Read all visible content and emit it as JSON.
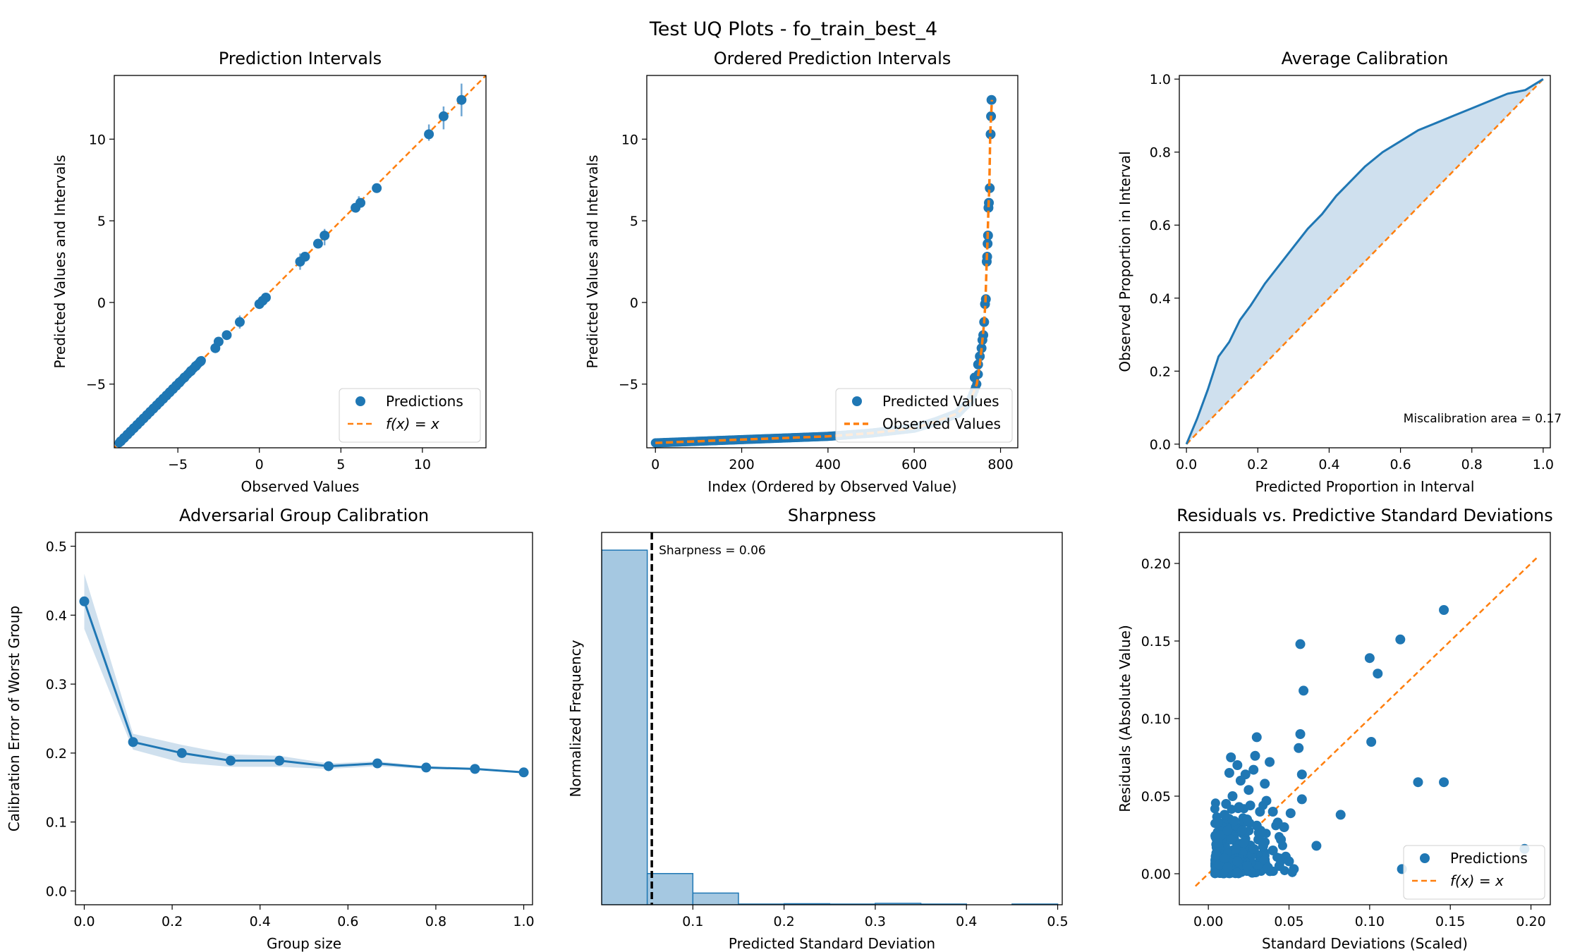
{
  "figure": {
    "title": "Test UQ Plots - fo_train_best_4",
    "colors": {
      "blue": "#1f77b4",
      "orange": "#ff7f0e",
      "fill": "#cfe0ee",
      "hist": "#a5c8e1"
    }
  },
  "chart_data": [
    {
      "id": "pi",
      "type": "scatter",
      "title": "Prediction Intervals",
      "xlabel": "Observed Values",
      "ylabel": "Predicted Values and Intervals",
      "xlim": [
        -8.9,
        13.9
      ],
      "ylim": [
        -8.9,
        13.9
      ],
      "xticks": [
        -5,
        0,
        5,
        10
      ],
      "yticks": [
        -5,
        0,
        5,
        10
      ],
      "tick_labels_x": [
        "−5",
        "0",
        "5",
        "10"
      ],
      "tick_labels_y": [
        "−5",
        "0",
        "5",
        "10"
      ],
      "legend": {
        "position": "lower-right",
        "entries": [
          "Predictions",
          "f(x) = x"
        ]
      },
      "points": [
        [
          -8.5,
          -8.5
        ],
        [
          -8.3,
          -8.3
        ],
        [
          -8.1,
          -8.1
        ],
        [
          -7.9,
          -7.9
        ],
        [
          -7.7,
          -7.7
        ],
        [
          -7.5,
          -7.5
        ],
        [
          -7.3,
          -7.3
        ],
        [
          -7.1,
          -7.1
        ],
        [
          -6.9,
          -6.9
        ],
        [
          -6.7,
          -6.7
        ],
        [
          -6.5,
          -6.5
        ],
        [
          -6.3,
          -6.3
        ],
        [
          -6.1,
          -6.1
        ],
        [
          -5.9,
          -5.9
        ],
        [
          -5.7,
          -5.7
        ],
        [
          -5.5,
          -5.5
        ],
        [
          -5.3,
          -5.3
        ],
        [
          -5.1,
          -5.1
        ],
        [
          -4.9,
          -4.9
        ],
        [
          -4.6,
          -4.6
        ],
        [
          -4.2,
          -4.2
        ],
        [
          -3.9,
          -3.9
        ],
        [
          -3.6,
          -3.6
        ],
        [
          -2.7,
          -2.8
        ],
        [
          -2.5,
          -2.4
        ],
        [
          -2.0,
          -2.0
        ],
        [
          -1.2,
          -1.2
        ],
        [
          0.0,
          -0.1
        ],
        [
          0.2,
          0.1
        ],
        [
          0.4,
          0.3
        ],
        [
          2.5,
          2.5
        ],
        [
          2.8,
          2.8
        ],
        [
          3.6,
          3.6
        ],
        [
          4.0,
          4.1
        ],
        [
          5.9,
          5.8
        ],
        [
          6.2,
          6.1
        ],
        [
          7.2,
          7.0
        ],
        [
          10.4,
          10.3
        ],
        [
          11.3,
          11.4
        ],
        [
          12.4,
          12.4
        ]
      ],
      "errors": [
        [
          4.0,
          0.5
        ],
        [
          10.4,
          0.5
        ],
        [
          11.3,
          0.7
        ],
        [
          12.4,
          1.0
        ],
        [
          -1.2,
          0.4
        ],
        [
          2.5,
          0.5
        ],
        [
          6.1,
          0.4
        ]
      ]
    },
    {
      "id": "opi",
      "type": "scatter",
      "title": "Ordered Prediction Intervals",
      "xlabel": "Index (Ordered by Observed Value)",
      "ylabel": "Predicted Values and Intervals",
      "xlim": [
        -20,
        840
      ],
      "ylim": [
        -8.9,
        13.9
      ],
      "xticks": [
        0,
        200,
        400,
        600,
        800
      ],
      "yticks": [
        -5,
        0,
        5,
        10
      ],
      "tick_labels_x": [
        "0",
        "200",
        "400",
        "600",
        "800"
      ],
      "tick_labels_y": [
        "−5",
        "0",
        "5",
        "10"
      ],
      "legend": {
        "position": "lower-right",
        "entries": [
          "Predicted Values",
          "Observed Values"
        ]
      },
      "curve_x": [
        0,
        100,
        200,
        300,
        400,
        500,
        600,
        650,
        700,
        730,
        745,
        752,
        757,
        762,
        765,
        768,
        770,
        772,
        774,
        776,
        778,
        780
      ],
      "curve_y": [
        -8.6,
        -8.5,
        -8.4,
        -8.3,
        -8.2,
        -8.0,
        -7.7,
        -7.3,
        -6.8,
        -6.0,
        -5.0,
        -3.8,
        -2.6,
        -1.2,
        0.0,
        2.6,
        4.0,
        5.8,
        7.0,
        10.3,
        11.4,
        12.4
      ],
      "sparse_points": [
        [
          740,
          -4.6
        ],
        [
          748,
          -3.8
        ],
        [
          752,
          -3.3
        ],
        [
          756,
          -2.8
        ],
        [
          758,
          -2.3
        ],
        [
          760,
          -2.0
        ],
        [
          762,
          -1.2
        ],
        [
          764,
          -0.1
        ],
        [
          766,
          0.2
        ],
        [
          768,
          2.5
        ],
        [
          769,
          2.8
        ],
        [
          770,
          3.6
        ],
        [
          771,
          4.1
        ],
        [
          772,
          5.8
        ],
        [
          773,
          6.1
        ],
        [
          775,
          7.0
        ],
        [
          777,
          10.3
        ],
        [
          778,
          11.4
        ],
        [
          779,
          12.4
        ]
      ]
    },
    {
      "id": "cal",
      "type": "line",
      "title": "Average Calibration",
      "xlabel": "Predicted Proportion in Interval",
      "ylabel": "Observed Proportion in Interval",
      "xlim": [
        -0.02,
        1.02
      ],
      "ylim": [
        -0.01,
        1.01
      ],
      "xticks": [
        0,
        0.2,
        0.4,
        0.6,
        0.8,
        1.0
      ],
      "yticks": [
        0,
        0.2,
        0.4,
        0.6,
        0.8,
        1.0
      ],
      "tick_labels_x": [
        "0.0",
        "0.2",
        "0.4",
        "0.6",
        "0.8",
        "1.0"
      ],
      "tick_labels_y": [
        "0.0",
        "0.2",
        "0.4",
        "0.6",
        "0.8",
        "1.0"
      ],
      "annotation": "Miscalibration area = 0.17",
      "x": [
        0,
        0.03,
        0.06,
        0.09,
        0.12,
        0.15,
        0.18,
        0.22,
        0.26,
        0.3,
        0.34,
        0.38,
        0.42,
        0.46,
        0.5,
        0.55,
        0.6,
        0.65,
        0.7,
        0.75,
        0.8,
        0.85,
        0.9,
        0.95,
        1.0
      ],
      "y": [
        0,
        0.07,
        0.15,
        0.24,
        0.28,
        0.34,
        0.38,
        0.44,
        0.49,
        0.54,
        0.59,
        0.63,
        0.68,
        0.72,
        0.76,
        0.8,
        0.83,
        0.86,
        0.88,
        0.9,
        0.92,
        0.94,
        0.96,
        0.97,
        1.0
      ]
    },
    {
      "id": "adv",
      "type": "line",
      "title": "Adversarial Group Calibration",
      "xlabel": "Group size",
      "ylabel": "Calibration Error of Worst Group",
      "xlim": [
        -0.02,
        1.02
      ],
      "ylim": [
        -0.02,
        0.52
      ],
      "xticks": [
        0,
        0.2,
        0.4,
        0.6,
        0.8,
        1.0
      ],
      "yticks": [
        0,
        0.1,
        0.2,
        0.3,
        0.4,
        0.5
      ],
      "tick_labels_x": [
        "0.0",
        "0.2",
        "0.4",
        "0.6",
        "0.8",
        "1.0"
      ],
      "tick_labels_y": [
        "0.0",
        "0.1",
        "0.2",
        "0.3",
        "0.4",
        "0.5"
      ],
      "x": [
        0.0,
        0.111,
        0.222,
        0.333,
        0.444,
        0.556,
        0.667,
        0.778,
        0.889,
        1.0
      ],
      "y": [
        0.42,
        0.216,
        0.2,
        0.189,
        0.189,
        0.181,
        0.185,
        0.179,
        0.177,
        0.172
      ],
      "upper": [
        0.46,
        0.228,
        0.212,
        0.198,
        0.196,
        0.185,
        0.188,
        0.181,
        0.178,
        0.173
      ],
      "lower": [
        0.38,
        0.205,
        0.186,
        0.18,
        0.18,
        0.177,
        0.181,
        0.177,
        0.176,
        0.171
      ]
    },
    {
      "id": "sharp",
      "type": "bar",
      "title": "Sharpness",
      "xlabel": "Predicted Standard Deviation",
      "ylabel": "Normalized Frequency",
      "xlim": [
        0,
        0.505
      ],
      "ylim": [
        0,
        1.05
      ],
      "xticks": [
        0.1,
        0.2,
        0.3,
        0.4,
        0.5
      ],
      "tick_labels_x": [
        "0.1",
        "0.2",
        "0.3",
        "0.4",
        "0.5"
      ],
      "bin_edges": [
        0,
        0.05,
        0.1,
        0.15,
        0.2,
        0.25,
        0.3,
        0.35,
        0.4,
        0.45,
        0.5
      ],
      "values": [
        1.0,
        0.088,
        0.033,
        0.002,
        0.003,
        0.002,
        0.004,
        0.002,
        0.0,
        0.002
      ],
      "sharpness_line": 0.055,
      "annotation": "Sharpness = 0.06"
    },
    {
      "id": "resid",
      "type": "scatter",
      "title": "Residuals vs. Predictive Standard Deviations",
      "xlabel": "Standard Deviations (Scaled)",
      "ylabel": "Residuals (Absolute Value)",
      "xlim": [
        -0.018,
        0.212
      ],
      "ylim": [
        -0.02,
        0.22
      ],
      "xticks": [
        0,
        0.05,
        0.1,
        0.15,
        0.2
      ],
      "yticks": [
        0,
        0.05,
        0.1,
        0.15,
        0.2
      ],
      "tick_labels_x": [
        "0.00",
        "0.05",
        "0.10",
        "0.15",
        "0.20"
      ],
      "tick_labels_y": [
        "0.00",
        "0.05",
        "0.10",
        "0.15",
        "0.20"
      ],
      "legend": {
        "position": "lower-right",
        "entries": [
          "Predictions",
          "f(x) = x"
        ]
      },
      "diag": [
        [
          -0.008,
          -0.008
        ],
        [
          0.205,
          0.205
        ]
      ],
      "points": [
        [
          0.146,
          0.17
        ],
        [
          0.057,
          0.148
        ],
        [
          0.1,
          0.139
        ],
        [
          0.119,
          0.151
        ],
        [
          0.105,
          0.129
        ],
        [
          0.059,
          0.118
        ],
        [
          0.101,
          0.085
        ],
        [
          0.057,
          0.09
        ],
        [
          0.056,
          0.081
        ],
        [
          0.03,
          0.088
        ],
        [
          0.13,
          0.059
        ],
        [
          0.146,
          0.059
        ],
        [
          0.082,
          0.038
        ],
        [
          0.067,
          0.018
        ],
        [
          0.12,
          0.003
        ],
        [
          0.196,
          0.016
        ],
        [
          0.058,
          0.064
        ],
        [
          0.058,
          0.048
        ],
        [
          0.053,
          0.003
        ],
        [
          0.051,
          0.039
        ],
        [
          0.047,
          0.03
        ],
        [
          0.045,
          0.022
        ],
        [
          0.038,
          0.072
        ],
        [
          0.035,
          0.058
        ],
        [
          0.036,
          0.047
        ],
        [
          0.032,
          0.04
        ],
        [
          0.029,
          0.076
        ],
        [
          0.028,
          0.067
        ],
        [
          0.025,
          0.054
        ],
        [
          0.023,
          0.064
        ],
        [
          0.02,
          0.06
        ],
        [
          0.018,
          0.07
        ],
        [
          0.014,
          0.075
        ],
        [
          0.013,
          0.065
        ],
        [
          0.011,
          0.045
        ],
        [
          0.01,
          0.038
        ],
        [
          0.009,
          0.03
        ],
        [
          0.008,
          0.025
        ],
        [
          0.006,
          0.02
        ],
        [
          0.005,
          0.012
        ],
        [
          0.007,
          0.006
        ],
        [
          0.012,
          0.004
        ],
        [
          0.017,
          0.016
        ],
        [
          0.021,
          0.028
        ],
        [
          0.024,
          0.035
        ],
        [
          0.027,
          0.012
        ],
        [
          0.031,
          0.022
        ],
        [
          0.035,
          0.009
        ],
        [
          0.04,
          0.015
        ],
        [
          0.043,
          0.033
        ],
        [
          0.048,
          0.011
        ],
        [
          0.015,
          0.05
        ],
        [
          0.019,
          0.043
        ],
        [
          0.026,
          0.044
        ],
        [
          0.03,
          0.031
        ],
        [
          0.033,
          0.026
        ],
        [
          0.016,
          0.034
        ],
        [
          0.022,
          0.02
        ],
        [
          0.034,
          0.018
        ],
        [
          0.04,
          0.04
        ],
        [
          0.044,
          0.005
        ],
        [
          0.05,
          0.008
        ],
        [
          0.01,
          0.01
        ],
        [
          0.014,
          0.022
        ],
        [
          0.018,
          0.008
        ],
        [
          0.024,
          0.005
        ],
        [
          0.028,
          0.016
        ],
        [
          0.037,
          0.004
        ],
        [
          0.006,
          0.033
        ],
        [
          0.012,
          0.028
        ]
      ]
    }
  ]
}
